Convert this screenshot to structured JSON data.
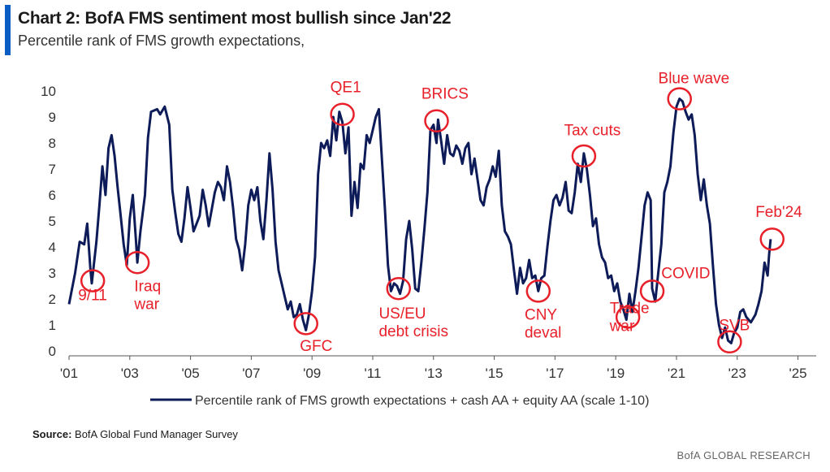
{
  "colors": {
    "accent": "#0a5dc2",
    "line": "#0d1b58",
    "annotation": "#e8202a",
    "axis": "#555555"
  },
  "title": "Chart 2: BofA FMS sentiment most bullish since Jan'22",
  "subtitle": "Percentile rank of FMS growth expectations,",
  "source_label": "Source:",
  "source_text": "BofA Global Fund Manager Survey",
  "brand": "BofA GLOBAL RESEARCH",
  "chart_data": {
    "type": "line",
    "title": "Chart 2: BofA FMS sentiment most bullish since Jan'22",
    "subtitle": "Percentile rank of FMS growth expectations,",
    "xlabel": "",
    "ylabel": "",
    "ylim": [
      0,
      10
    ],
    "xlim": [
      2001,
      2025.6
    ],
    "yticks": [
      "0",
      "1",
      "2",
      "3",
      "4",
      "5",
      "6",
      "7",
      "8",
      "9",
      "10"
    ],
    "xticks": [
      {
        "label": "'01",
        "x": 2001
      },
      {
        "label": "'03",
        "x": 2003
      },
      {
        "label": "'05",
        "x": 2005
      },
      {
        "label": "'07",
        "x": 2007
      },
      {
        "label": "'09",
        "x": 2009
      },
      {
        "label": "'11",
        "x": 2011
      },
      {
        "label": "'13",
        "x": 2013
      },
      {
        "label": "'15",
        "x": 2015
      },
      {
        "label": "'17",
        "x": 2017
      },
      {
        "label": "'19",
        "x": 2019
      },
      {
        "label": "'21",
        "x": 2021
      },
      {
        "label": "'23",
        "x": 2023
      },
      {
        "label": "'25",
        "x": 2025
      }
    ],
    "grid": false,
    "legend_position": "bottom",
    "series": [
      {
        "name": "Percentile rank of FMS growth expectations + cash AA + equity AA (scale 1-10)",
        "points": [
          [
            2001.0,
            1.8
          ],
          [
            2001.2,
            3.0
          ],
          [
            2001.35,
            4.2
          ],
          [
            2001.5,
            4.1
          ],
          [
            2001.6,
            4.9
          ],
          [
            2001.7,
            3.2
          ],
          [
            2001.75,
            2.6
          ],
          [
            2001.9,
            4.2
          ],
          [
            2002.0,
            5.6
          ],
          [
            2002.1,
            7.1
          ],
          [
            2002.2,
            6.0
          ],
          [
            2002.3,
            7.8
          ],
          [
            2002.4,
            8.3
          ],
          [
            2002.5,
            7.5
          ],
          [
            2002.6,
            6.3
          ],
          [
            2002.7,
            5.2
          ],
          [
            2002.8,
            4.1
          ],
          [
            2002.9,
            3.3
          ],
          [
            2003.0,
            5.1
          ],
          [
            2003.1,
            6.0
          ],
          [
            2003.2,
            4.3
          ],
          [
            2003.25,
            3.4
          ],
          [
            2003.35,
            4.6
          ],
          [
            2003.5,
            6.0
          ],
          [
            2003.6,
            8.2
          ],
          [
            2003.7,
            9.2
          ],
          [
            2003.9,
            9.3
          ],
          [
            2004.0,
            9.1
          ],
          [
            2004.15,
            9.4
          ],
          [
            2004.3,
            8.7
          ],
          [
            2004.4,
            6.2
          ],
          [
            2004.5,
            5.3
          ],
          [
            2004.6,
            4.5
          ],
          [
            2004.7,
            4.2
          ],
          [
            2004.8,
            5.1
          ],
          [
            2004.9,
            6.3
          ],
          [
            2005.0,
            5.5
          ],
          [
            2005.1,
            4.6
          ],
          [
            2005.2,
            4.9
          ],
          [
            2005.3,
            5.2
          ],
          [
            2005.4,
            6.2
          ],
          [
            2005.5,
            5.6
          ],
          [
            2005.6,
            4.8
          ],
          [
            2005.8,
            6.1
          ],
          [
            2005.9,
            6.5
          ],
          [
            2006.0,
            6.3
          ],
          [
            2006.1,
            5.8
          ],
          [
            2006.2,
            7.1
          ],
          [
            2006.3,
            6.5
          ],
          [
            2006.4,
            5.5
          ],
          [
            2006.5,
            4.3
          ],
          [
            2006.6,
            3.9
          ],
          [
            2006.7,
            3.1
          ],
          [
            2006.8,
            4.1
          ],
          [
            2006.9,
            5.6
          ],
          [
            2007.0,
            6.2
          ],
          [
            2007.1,
            5.8
          ],
          [
            2007.2,
            6.3
          ],
          [
            2007.3,
            5.0
          ],
          [
            2007.4,
            4.3
          ],
          [
            2007.5,
            5.8
          ],
          [
            2007.6,
            7.6
          ],
          [
            2007.7,
            6.2
          ],
          [
            2007.8,
            4.2
          ],
          [
            2007.9,
            3.1
          ],
          [
            2008.0,
            2.6
          ],
          [
            2008.1,
            2.1
          ],
          [
            2008.2,
            1.6
          ],
          [
            2008.3,
            1.9
          ],
          [
            2008.4,
            1.3
          ],
          [
            2008.5,
            1.4
          ],
          [
            2008.6,
            1.8
          ],
          [
            2008.7,
            1.2
          ],
          [
            2008.8,
            0.8
          ],
          [
            2008.9,
            1.4
          ],
          [
            2009.0,
            2.3
          ],
          [
            2009.1,
            3.6
          ],
          [
            2009.2,
            6.8
          ],
          [
            2009.3,
            8.0
          ],
          [
            2009.4,
            7.8
          ],
          [
            2009.5,
            8.1
          ],
          [
            2009.6,
            7.5
          ],
          [
            2009.7,
            9.0
          ],
          [
            2009.8,
            8.1
          ],
          [
            2009.9,
            9.2
          ],
          [
            2010.0,
            8.8
          ],
          [
            2010.1,
            7.6
          ],
          [
            2010.2,
            8.6
          ],
          [
            2010.3,
            5.2
          ],
          [
            2010.4,
            6.5
          ],
          [
            2010.5,
            5.5
          ],
          [
            2010.6,
            7.2
          ],
          [
            2010.7,
            7.0
          ],
          [
            2010.8,
            8.3
          ],
          [
            2010.9,
            8.0
          ],
          [
            2011.0,
            8.5
          ],
          [
            2011.1,
            9.0
          ],
          [
            2011.2,
            9.3
          ],
          [
            2011.3,
            7.4
          ],
          [
            2011.4,
            5.5
          ],
          [
            2011.5,
            3.3
          ],
          [
            2011.6,
            2.3
          ],
          [
            2011.7,
            2.6
          ],
          [
            2011.8,
            2.5
          ],
          [
            2011.9,
            2.2
          ],
          [
            2012.0,
            2.7
          ],
          [
            2012.1,
            4.3
          ],
          [
            2012.2,
            5.0
          ],
          [
            2012.3,
            3.9
          ],
          [
            2012.4,
            2.4
          ],
          [
            2012.5,
            2.3
          ],
          [
            2012.6,
            3.4
          ],
          [
            2012.7,
            4.7
          ],
          [
            2012.8,
            6.1
          ],
          [
            2012.9,
            8.5
          ],
          [
            2013.0,
            8.7
          ],
          [
            2013.1,
            8.0
          ],
          [
            2013.15,
            8.9
          ],
          [
            2013.25,
            8.1
          ],
          [
            2013.35,
            7.2
          ],
          [
            2013.45,
            8.3
          ],
          [
            2013.55,
            7.6
          ],
          [
            2013.65,
            7.5
          ],
          [
            2013.75,
            7.9
          ],
          [
            2013.85,
            7.7
          ],
          [
            2013.95,
            7.2
          ],
          [
            2014.05,
            7.8
          ],
          [
            2014.15,
            8.0
          ],
          [
            2014.25,
            6.8
          ],
          [
            2014.35,
            7.4
          ],
          [
            2014.45,
            6.6
          ],
          [
            2014.55,
            5.8
          ],
          [
            2014.65,
            5.6
          ],
          [
            2014.75,
            6.3
          ],
          [
            2014.85,
            6.6
          ],
          [
            2014.95,
            7.1
          ],
          [
            2015.05,
            6.7
          ],
          [
            2015.15,
            7.7
          ],
          [
            2015.25,
            5.6
          ],
          [
            2015.35,
            4.6
          ],
          [
            2015.45,
            4.4
          ],
          [
            2015.55,
            4.1
          ],
          [
            2015.65,
            3.1
          ],
          [
            2015.75,
            2.2
          ],
          [
            2015.85,
            3.2
          ],
          [
            2015.95,
            2.6
          ],
          [
            2016.05,
            2.8
          ],
          [
            2016.15,
            3.5
          ],
          [
            2016.25,
            2.8
          ],
          [
            2016.35,
            2.9
          ],
          [
            2016.45,
            2.3
          ],
          [
            2016.55,
            2.8
          ],
          [
            2016.65,
            2.9
          ],
          [
            2016.75,
            4.0
          ],
          [
            2016.85,
            5.0
          ],
          [
            2016.95,
            5.8
          ],
          [
            2017.05,
            6.0
          ],
          [
            2017.15,
            5.6
          ],
          [
            2017.25,
            5.9
          ],
          [
            2017.35,
            6.5
          ],
          [
            2017.45,
            5.4
          ],
          [
            2017.55,
            5.3
          ],
          [
            2017.65,
            6.1
          ],
          [
            2017.75,
            7.2
          ],
          [
            2017.85,
            6.5
          ],
          [
            2017.95,
            7.6
          ],
          [
            2018.05,
            7.0
          ],
          [
            2018.15,
            6.0
          ],
          [
            2018.25,
            4.8
          ],
          [
            2018.35,
            5.1
          ],
          [
            2018.45,
            4.1
          ],
          [
            2018.55,
            3.6
          ],
          [
            2018.65,
            3.4
          ],
          [
            2018.75,
            2.8
          ],
          [
            2018.85,
            2.9
          ],
          [
            2018.95,
            2.3
          ],
          [
            2019.05,
            2.6
          ],
          [
            2019.15,
            1.9
          ],
          [
            2019.25,
            1.6
          ],
          [
            2019.35,
            1.2
          ],
          [
            2019.45,
            2.2
          ],
          [
            2019.55,
            1.5
          ],
          [
            2019.65,
            2.3
          ],
          [
            2019.75,
            3.2
          ],
          [
            2019.85,
            4.4
          ],
          [
            2019.95,
            5.6
          ],
          [
            2020.05,
            6.1
          ],
          [
            2020.15,
            5.8
          ],
          [
            2020.2,
            2.4
          ],
          [
            2020.3,
            1.9
          ],
          [
            2020.4,
            3.0
          ],
          [
            2020.5,
            4.1
          ],
          [
            2020.6,
            6.1
          ],
          [
            2020.7,
            6.5
          ],
          [
            2020.8,
            7.1
          ],
          [
            2020.9,
            8.4
          ],
          [
            2021.0,
            9.4
          ],
          [
            2021.1,
            9.7
          ],
          [
            2021.2,
            9.6
          ],
          [
            2021.3,
            9.2
          ],
          [
            2021.4,
            8.9
          ],
          [
            2021.5,
            9.1
          ],
          [
            2021.6,
            8.3
          ],
          [
            2021.7,
            6.8
          ],
          [
            2021.8,
            5.8
          ],
          [
            2021.9,
            6.6
          ],
          [
            2022.0,
            5.6
          ],
          [
            2022.1,
            4.9
          ],
          [
            2022.2,
            3.3
          ],
          [
            2022.3,
            1.8
          ],
          [
            2022.4,
            1.0
          ],
          [
            2022.5,
            0.5
          ],
          [
            2022.6,
            0.9
          ],
          [
            2022.7,
            0.4
          ],
          [
            2022.8,
            0.3
          ],
          [
            2022.9,
            0.7
          ],
          [
            2023.0,
            0.9
          ],
          [
            2023.1,
            1.5
          ],
          [
            2023.2,
            1.6
          ],
          [
            2023.3,
            1.3
          ],
          [
            2023.45,
            1.1
          ],
          [
            2023.6,
            1.4
          ],
          [
            2023.7,
            1.8
          ],
          [
            2023.8,
            2.3
          ],
          [
            2023.9,
            3.4
          ],
          [
            2024.0,
            2.9
          ],
          [
            2024.05,
            3.7
          ],
          [
            2024.1,
            4.3
          ]
        ]
      }
    ],
    "annotations": [
      {
        "text": "9/11",
        "cx": 2001.78,
        "cy": 2.7,
        "label_x": 2001.3,
        "label_y": 1.95
      },
      {
        "text": "Iraq\nwar",
        "cx": 2003.25,
        "cy": 3.4,
        "label_x": 2003.15,
        "label_y": 2.3
      },
      {
        "text": "GFC",
        "cx": 2008.8,
        "cy": 1.05,
        "label_x": 2008.6,
        "label_y": 0.0
      },
      {
        "text": "QE1",
        "cx": 2010.0,
        "cy": 9.1,
        "label_x": 2009.6,
        "label_y": 9.95
      },
      {
        "text": "US/EU\ndebt crisis",
        "cx": 2011.85,
        "cy": 2.4,
        "label_x": 2011.2,
        "label_y": 1.25
      },
      {
        "text": "BRICS",
        "cx": 2013.1,
        "cy": 8.85,
        "label_x": 2012.6,
        "label_y": 9.7
      },
      {
        "text": "CNY\ndeval",
        "cx": 2016.45,
        "cy": 2.3,
        "label_x": 2016.0,
        "label_y": 1.2
      },
      {
        "text": "Tax cuts",
        "cx": 2017.95,
        "cy": 7.5,
        "label_x": 2017.3,
        "label_y": 8.3
      },
      {
        "text": "Trade\nwar",
        "cx": 2019.4,
        "cy": 1.3,
        "label_x": 2018.8,
        "label_y": 1.45
      },
      {
        "text": "COVID",
        "cx": 2020.2,
        "cy": 2.3,
        "label_x": 2020.5,
        "label_y": 2.8
      },
      {
        "text": "Blue wave",
        "cx": 2021.1,
        "cy": 9.7,
        "label_x": 2020.4,
        "label_y": 10.3
      },
      {
        "text": "SVB",
        "cx": 2022.75,
        "cy": 0.35,
        "label_x": 2022.4,
        "label_y": 0.8
      },
      {
        "text": "Feb'24",
        "cx": 2024.15,
        "cy": 4.3,
        "label_x": 2023.6,
        "label_y": 5.15
      }
    ]
  }
}
